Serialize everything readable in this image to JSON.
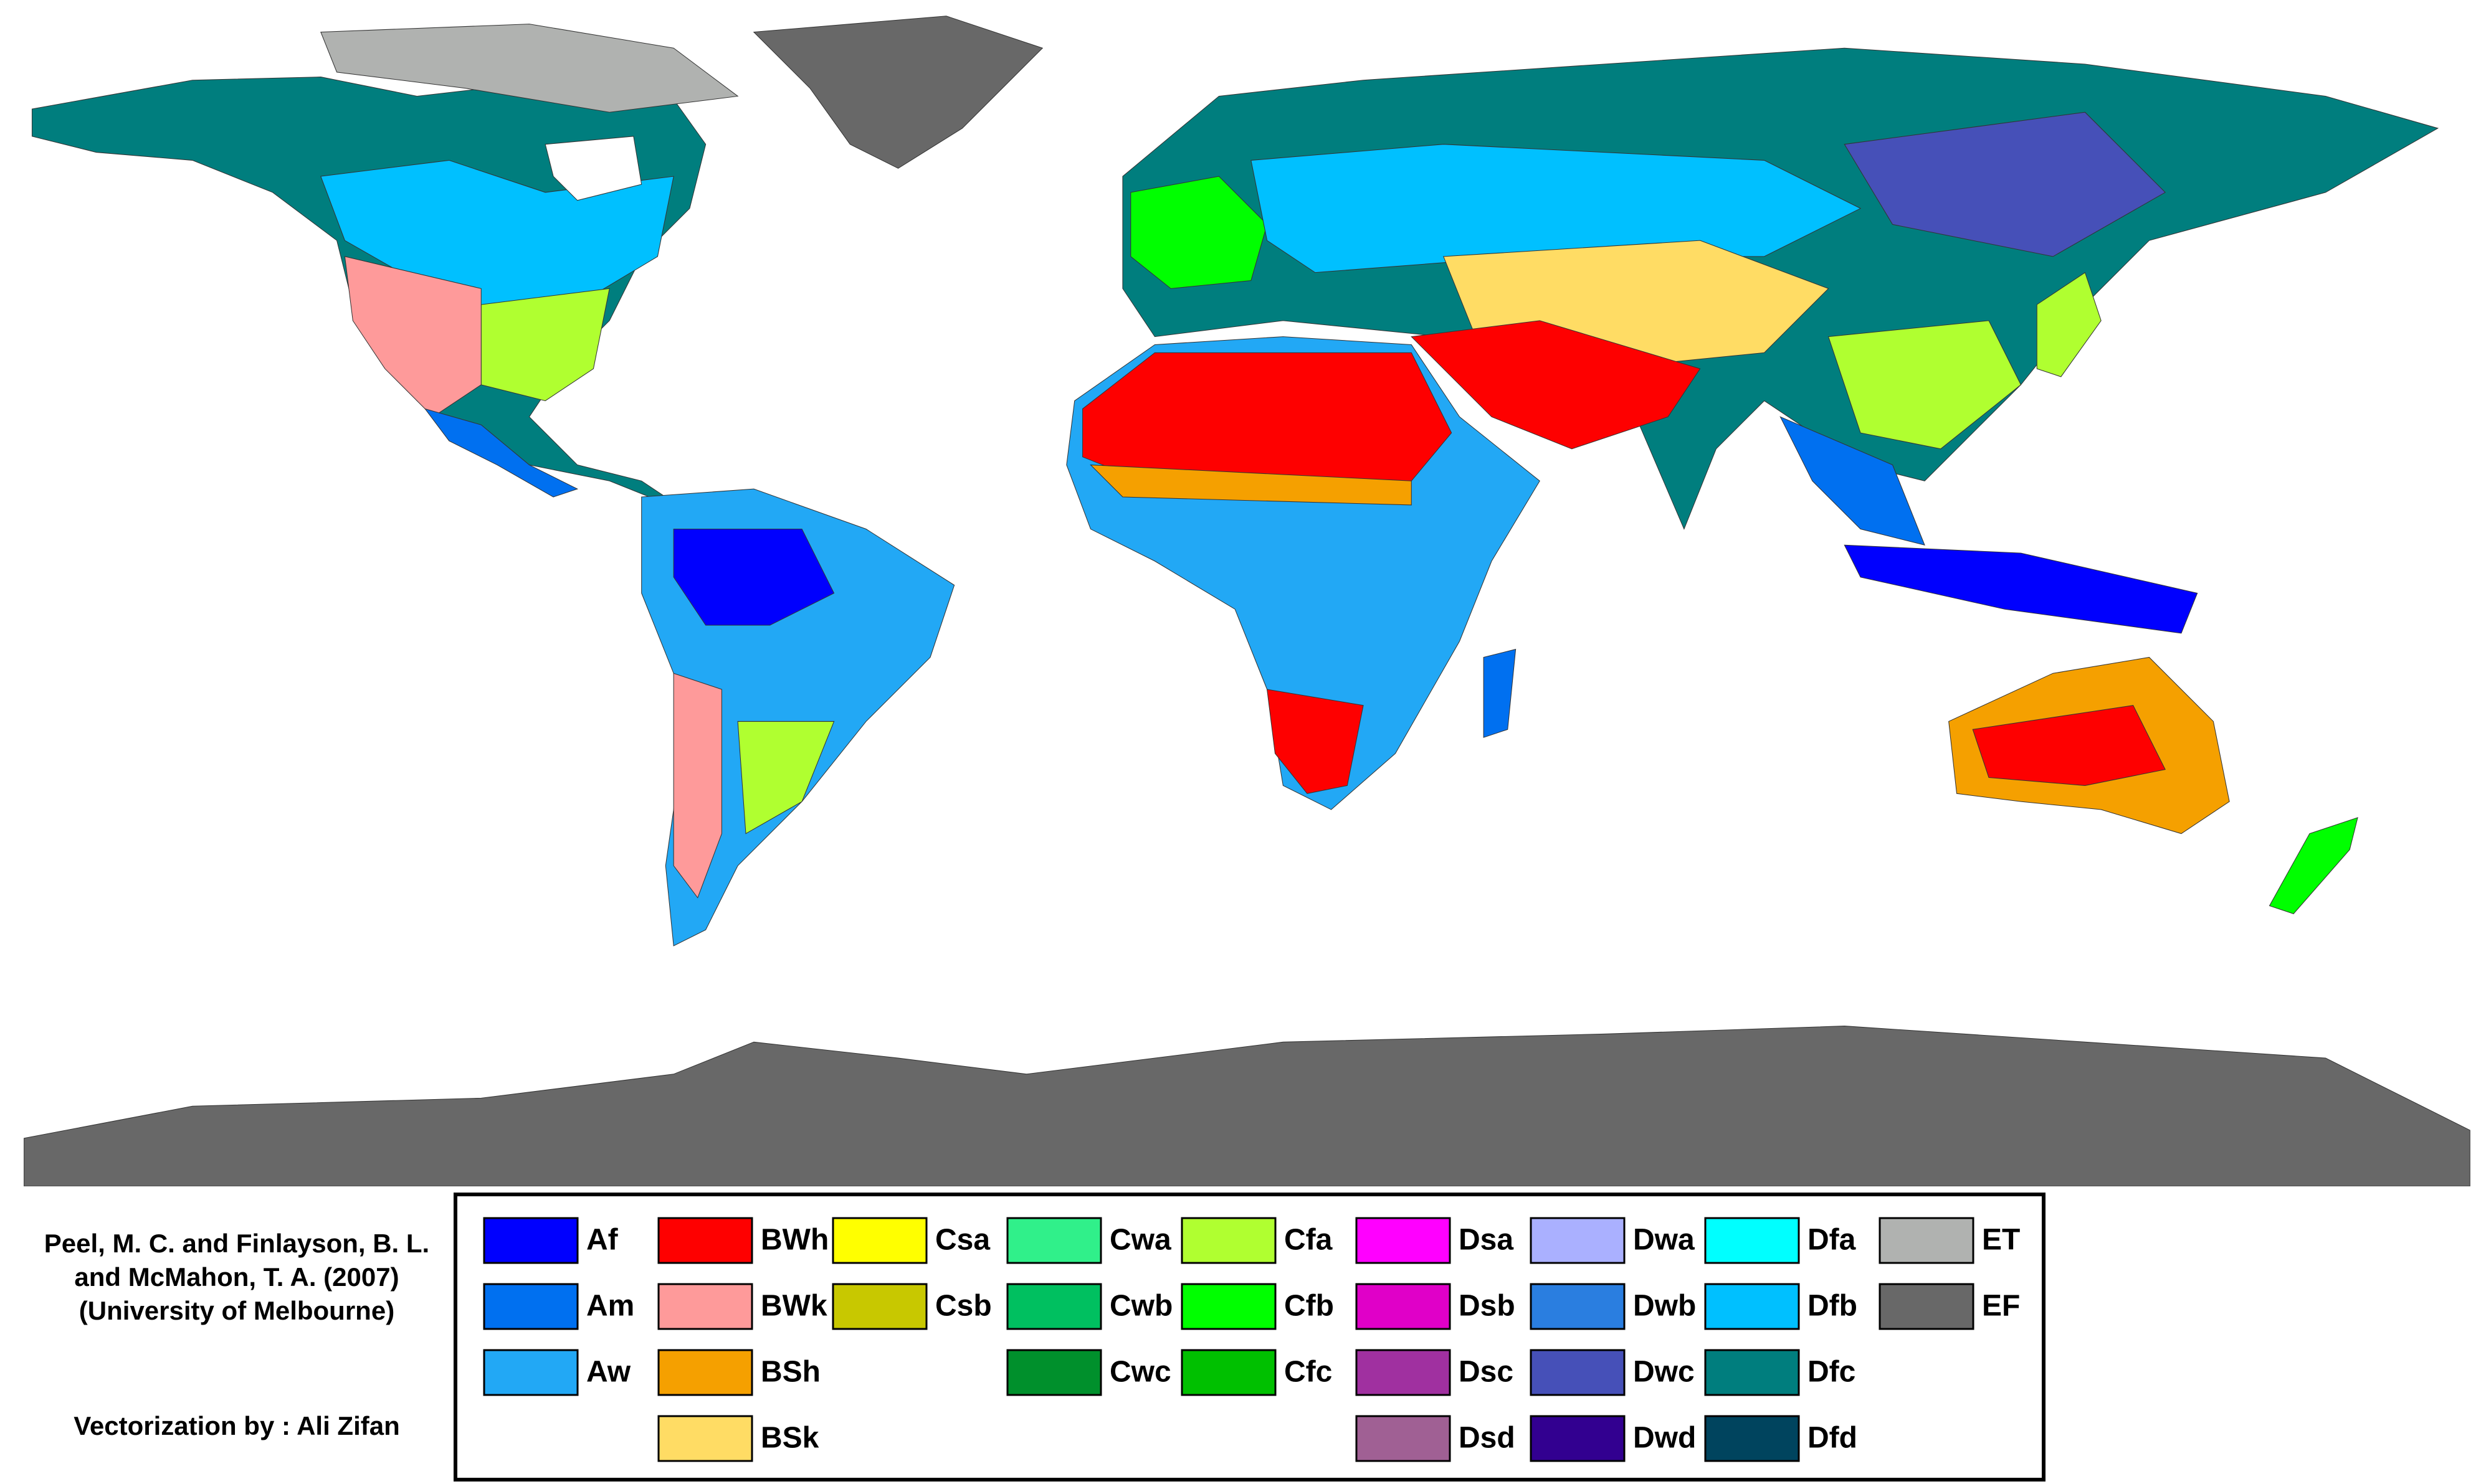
{
  "credits": {
    "lines": [
      "Peel, M. C. and Finlayson, B. L.",
      "and McMahon, T. A. (2007)",
      "(University of Melbourne)"
    ],
    "vectorization": "Vectorization by : Ali Zifan"
  },
  "legend": [
    [
      {
        "label": "Af",
        "color": "#0000fe"
      },
      {
        "label": "Am",
        "color": "#0070f0"
      },
      {
        "label": "Aw",
        "color": "#22a8f5"
      }
    ],
    [
      {
        "label": "BWh",
        "color": "#fe0000"
      },
      {
        "label": "BWk",
        "color": "#fe9a9a"
      },
      {
        "label": "BSh",
        "color": "#f5a000"
      },
      {
        "label": "BSk",
        "color": "#ffdc64"
      }
    ],
    [
      {
        "label": "Csa",
        "color": "#ffff00"
      },
      {
        "label": "Csb",
        "color": "#c8c800"
      }
    ],
    [
      {
        "label": "Cwa",
        "color": "#30f08a"
      },
      {
        "label": "Cwb",
        "color": "#00c060"
      },
      {
        "label": "Cwc",
        "color": "#00902c"
      }
    ],
    [
      {
        "label": "Cfa",
        "color": "#b0ff30"
      },
      {
        "label": "Cfb",
        "color": "#00ff00"
      },
      {
        "label": "Cfc",
        "color": "#00c000"
      }
    ],
    [
      {
        "label": "Dsa",
        "color": "#ff00ff"
      },
      {
        "label": "Dsb",
        "color": "#e000c8"
      },
      {
        "label": "Dsc",
        "color": "#a030a0"
      },
      {
        "label": "Dsd",
        "color": "#a06094"
      }
    ],
    [
      {
        "label": "Dwa",
        "color": "#aab0ff"
      },
      {
        "label": "Dwb",
        "color": "#2a7ee0"
      },
      {
        "label": "Dwc",
        "color": "#4650b8"
      },
      {
        "label": "Dwd",
        "color": "#320090"
      }
    ],
    [
      {
        "label": "Dfa",
        "color": "#00ffff"
      },
      {
        "label": "Dfb",
        "color": "#00c0ff"
      },
      {
        "label": "Dfc",
        "color": "#007e7e"
      },
      {
        "label": "Dfd",
        "color": "#00445e"
      }
    ],
    [
      {
        "label": "ET",
        "color": "#b0b2b0"
      },
      {
        "label": "EF",
        "color": "#686868"
      }
    ]
  ]
}
